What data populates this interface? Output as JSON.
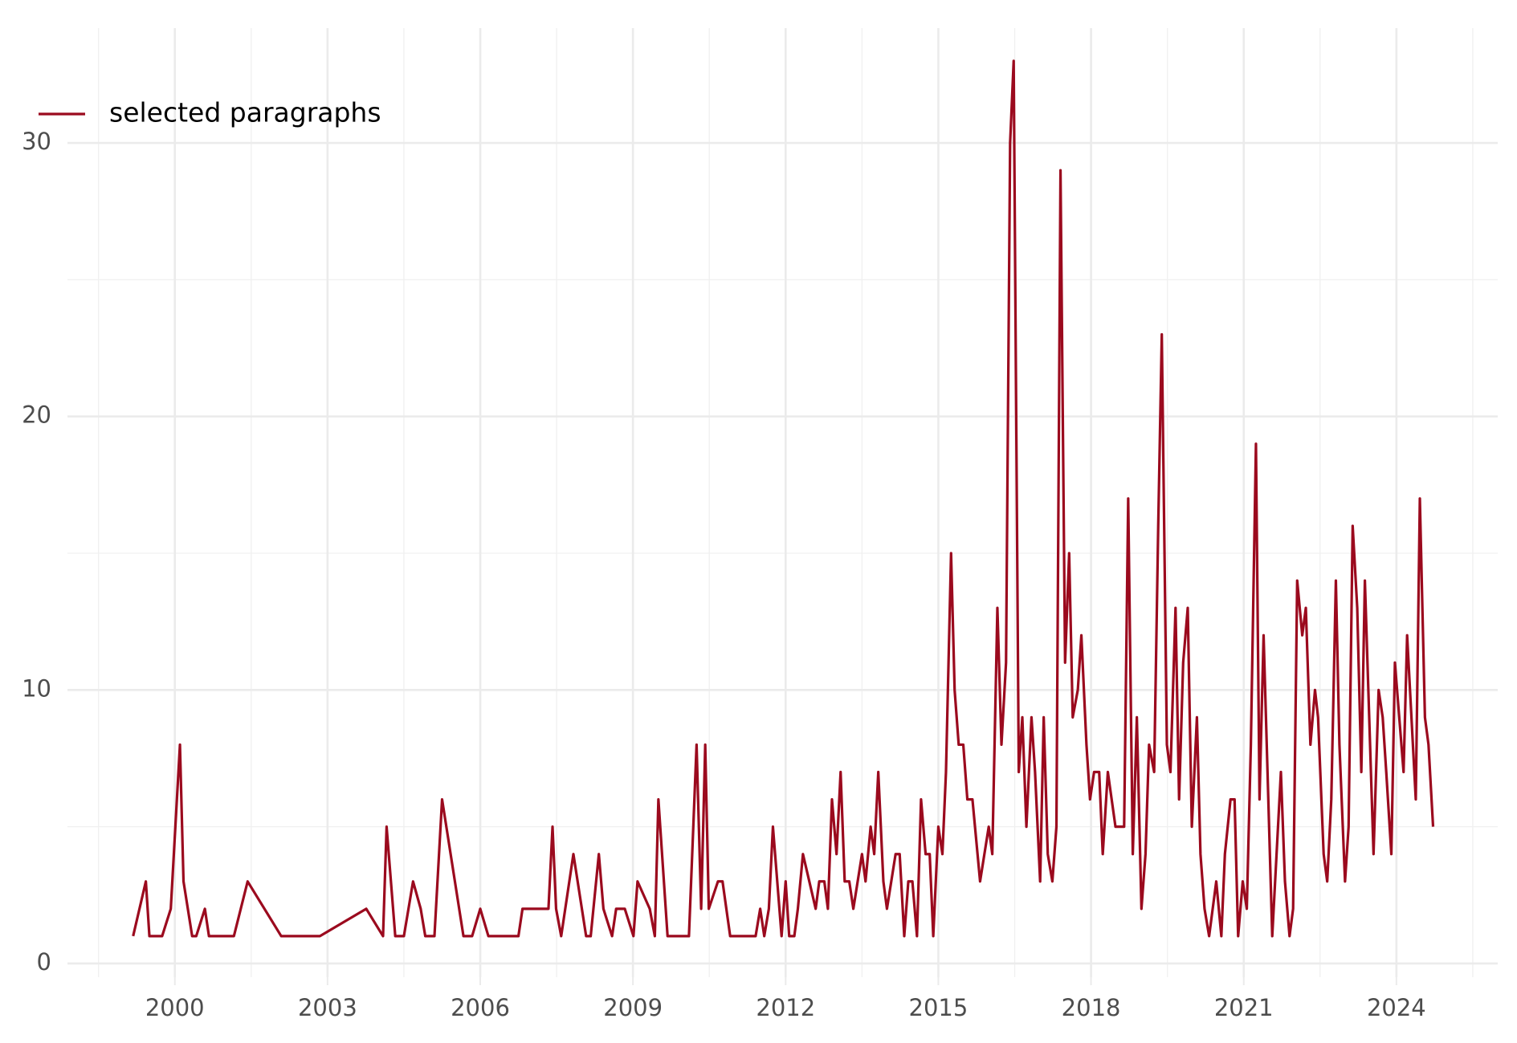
{
  "chart_data": {
    "type": "line",
    "x": [
      1999.18,
      1999.43,
      1999.5,
      1999.75,
      1999.92,
      2000.1,
      2000.17,
      2000.34,
      2000.42,
      2000.59,
      2000.67,
      2001.16,
      2001.43,
      2002.09,
      2002.85,
      2003.76,
      2004.09,
      2004.16,
      2004.33,
      2004.5,
      2004.68,
      2004.83,
      2004.92,
      2005.1,
      2005.25,
      2005.67,
      2005.84,
      2006.0,
      2006.16,
      2006.75,
      2006.83,
      2007.34,
      2007.42,
      2007.49,
      2007.59,
      2007.83,
      2008.08,
      2008.17,
      2008.33,
      2008.42,
      2008.59,
      2008.67,
      2008.84,
      2009.01,
      2009.09,
      2009.33,
      2009.43,
      2009.5,
      2009.68,
      2010.1,
      2010.25,
      2010.34,
      2010.42,
      2010.49,
      2010.67,
      2010.76,
      2010.91,
      2011.41,
      2011.5,
      2011.58,
      2011.67,
      2011.75,
      2011.92,
      2012.0,
      2012.07,
      2012.17,
      2012.24,
      2012.34,
      2012.59,
      2012.66,
      2012.76,
      2012.83,
      2012.91,
      2013.0,
      2013.08,
      2013.16,
      2013.25,
      2013.33,
      2013.5,
      2013.57,
      2013.67,
      2013.74,
      2013.82,
      2013.92,
      2013.99,
      2014.16,
      2014.24,
      2014.33,
      2014.41,
      2014.49,
      2014.58,
      2014.66,
      2014.75,
      2014.83,
      2014.9,
      2015.0,
      2015.08,
      2015.15,
      2015.25,
      2015.32,
      2015.4,
      2015.49,
      2015.57,
      2015.67,
      2015.82,
      2015.99,
      2016.06,
      2016.16,
      2016.24,
      2016.33,
      2016.41,
      2016.48,
      2016.58,
      2016.65,
      2016.73,
      2016.83,
      2016.9,
      2017.0,
      2017.07,
      2017.15,
      2017.24,
      2017.32,
      2017.4,
      2017.49,
      2017.57,
      2017.64,
      2017.74,
      2017.81,
      2017.91,
      2017.98,
      2018.06,
      2018.16,
      2018.23,
      2018.33,
      2018.48,
      2018.65,
      2018.73,
      2018.82,
      2018.9,
      2018.99,
      2019.07,
      2019.14,
      2019.24,
      2019.32,
      2019.39,
      2019.49,
      2019.56,
      2019.66,
      2019.73,
      2019.81,
      2019.9,
      2019.98,
      2020.08,
      2020.15,
      2020.23,
      2020.32,
      2020.46,
      2020.56,
      2020.63,
      2020.74,
      2020.82,
      2020.89,
      2020.98,
      2021.06,
      2021.14,
      2021.24,
      2021.31,
      2021.39,
      2021.56,
      2021.73,
      2021.81,
      2021.9,
      2021.97,
      2022.05,
      2022.15,
      2022.22,
      2022.31,
      2022.4,
      2022.46,
      2022.57,
      2022.64,
      2022.72,
      2022.81,
      2022.88,
      2022.99,
      2023.06,
      2023.14,
      2023.23,
      2023.31,
      2023.38,
      2023.55,
      2023.65,
      2023.73,
      2023.8,
      2023.9,
      2023.97,
      2024.14,
      2024.21,
      2024.38,
      2024.46,
      2024.56,
      2024.63,
      2024.72
    ],
    "series": [
      {
        "name": "selected paragraphs",
        "color": "#9b0a1e",
        "values": [
          1,
          3,
          1,
          1,
          2,
          8,
          3,
          1,
          1,
          2,
          1,
          1,
          3,
          1,
          1,
          2,
          1,
          5,
          1,
          1,
          3,
          2,
          1,
          1,
          6,
          1,
          1,
          2,
          1,
          1,
          2,
          2,
          5,
          2,
          1,
          4,
          1,
          1,
          4,
          2,
          1,
          2,
          2,
          1,
          3,
          2,
          1,
          6,
          1,
          1,
          8,
          2,
          8,
          2,
          3,
          3,
          1,
          1,
          2,
          1,
          2,
          5,
          1,
          3,
          1,
          1,
          2,
          4,
          2,
          3,
          3,
          2,
          6,
          4,
          7,
          3,
          3,
          2,
          4,
          3,
          5,
          4,
          7,
          3,
          2,
          4,
          4,
          1,
          3,
          3,
          1,
          6,
          4,
          4,
          1,
          5,
          4,
          7,
          15,
          10,
          8,
          8,
          6,
          6,
          3,
          5,
          4,
          13,
          8,
          11,
          30,
          33,
          7,
          9,
          5,
          9,
          7,
          3,
          9,
          4,
          3,
          5,
          29,
          11,
          15,
          9,
          10,
          12,
          8,
          6,
          7,
          7,
          4,
          7,
          5,
          5,
          17,
          4,
          9,
          2,
          4,
          8,
          7,
          16,
          23,
          8,
          7,
          13,
          6,
          11,
          13,
          5,
          9,
          4,
          2,
          1,
          3,
          1,
          4,
          6,
          6,
          1,
          3,
          2,
          8,
          19,
          6,
          12,
          1,
          7,
          3,
          1,
          2,
          14,
          12,
          13,
          8,
          10,
          9,
          4,
          3,
          6,
          14,
          8,
          3,
          5,
          16,
          13,
          7,
          14,
          4,
          10,
          9,
          7,
          4,
          11,
          7,
          12,
          6,
          17,
          9,
          8,
          5
        ]
      }
    ],
    "xlim": [
      1997.89,
      2025.99
    ],
    "xticks": [
      2000,
      2003,
      2006,
      2009,
      2012,
      2015,
      2018,
      2021,
      2024
    ],
    "ylim": [
      -0.5,
      34.2
    ],
    "yticks": [
      0,
      10,
      20,
      30
    ],
    "grid": true,
    "legend": "top-left"
  }
}
